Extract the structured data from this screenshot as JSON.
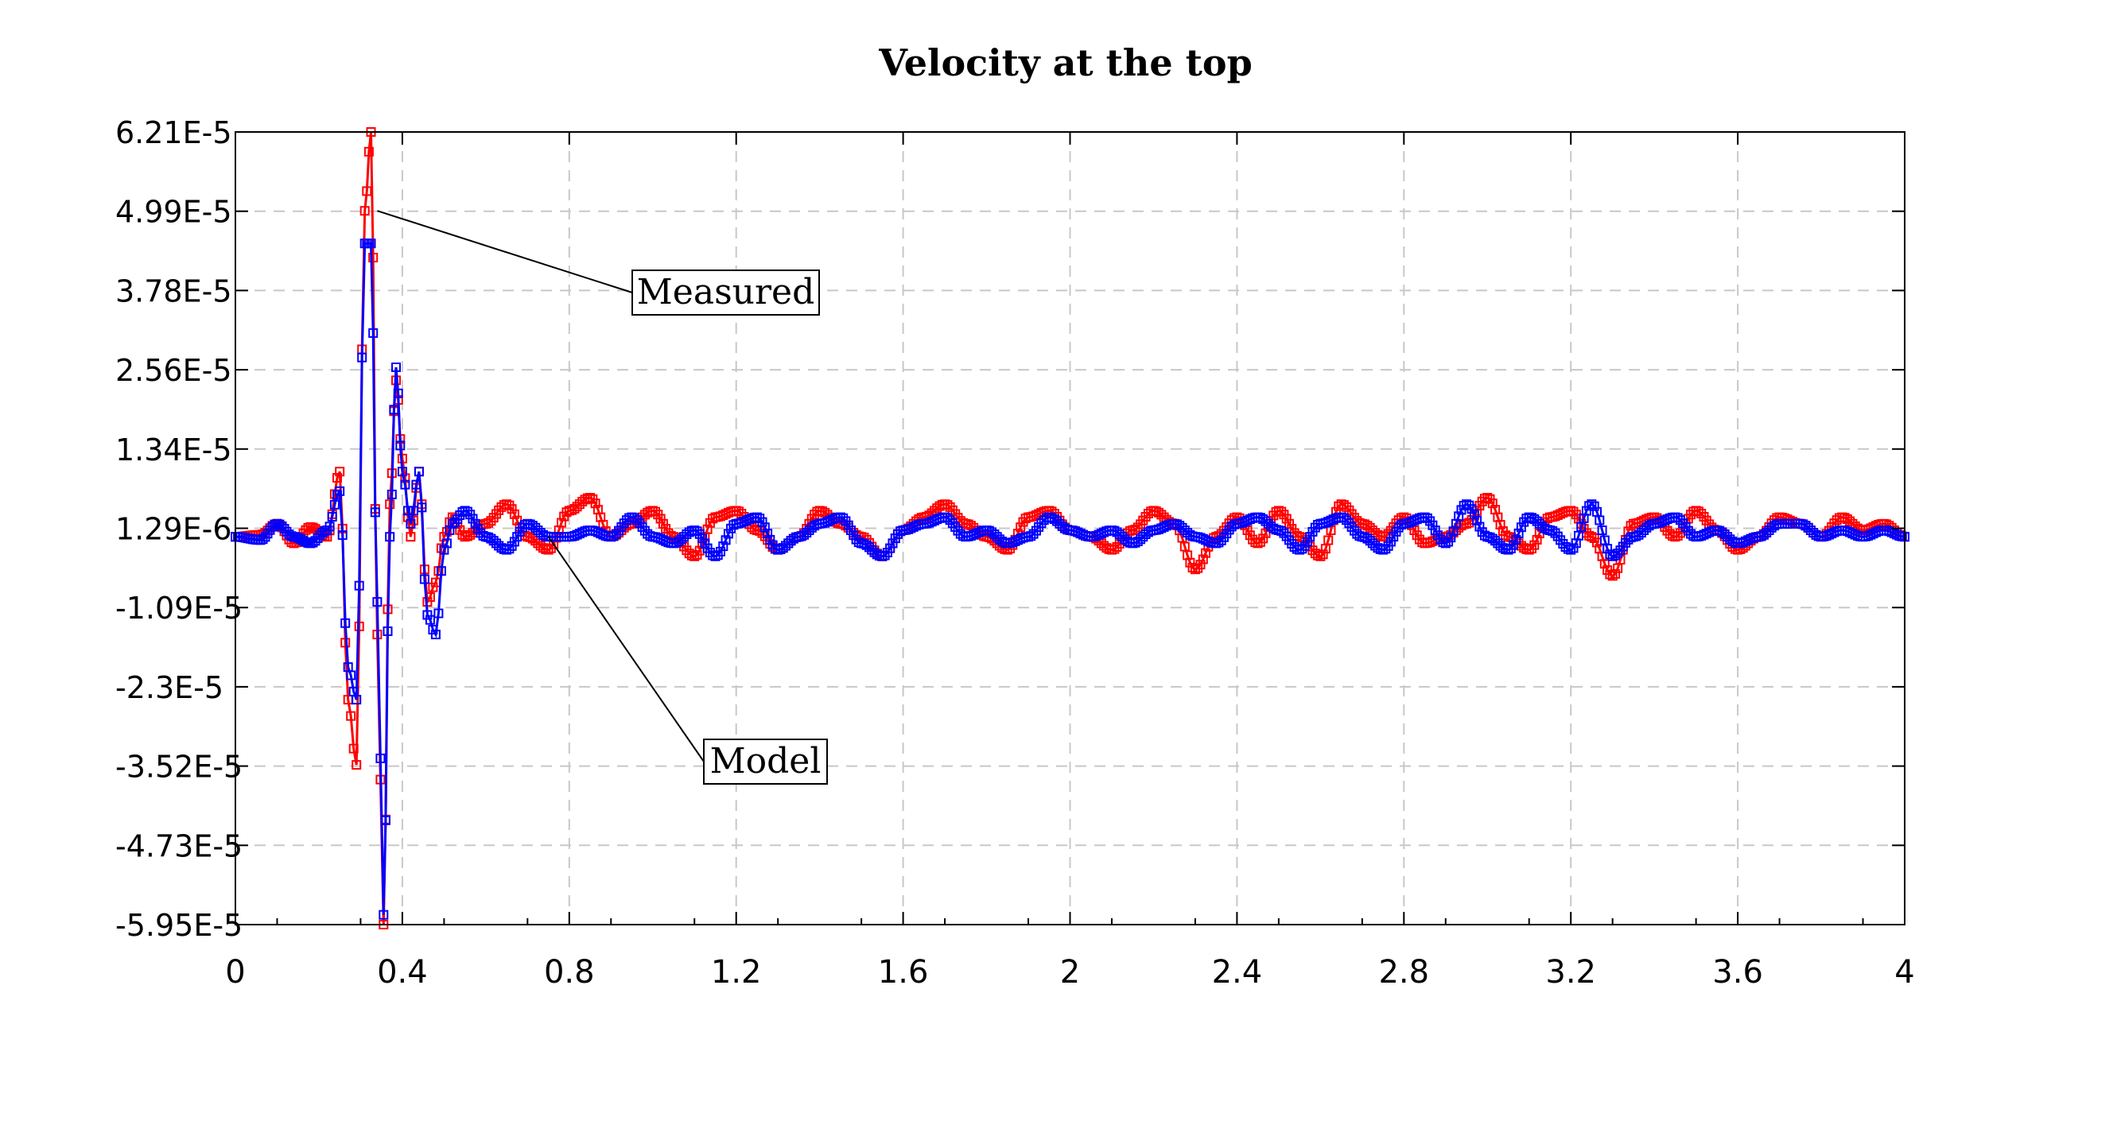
{
  "chart_data": {
    "type": "line",
    "title": "Velocity at the top",
    "xlabel": "",
    "ylabel": "",
    "xlim": [
      0,
      4
    ],
    "ylim": [
      -5.95e-05,
      6.21e-05
    ],
    "x_ticks": [
      "0",
      "0.4",
      "0.8",
      "1.2",
      "1.6",
      "2",
      "2.4",
      "2.8",
      "3.2",
      "3.6",
      "4"
    ],
    "y_ticks": [
      "6.21E-5",
      "4.99E-5",
      "3.78E-5",
      "2.56E-5",
      "1.34E-5",
      "1.29E-6",
      "-1.09E-5",
      "-2.3E-5",
      "-3.52E-5",
      "-4.73E-5",
      "-5.95E-5"
    ],
    "grid": true,
    "legend": "none",
    "series": [
      {
        "name": "Measured",
        "color": "#ff0000",
        "marker": "square",
        "x": [
          0,
          0.06,
          0.1,
          0.14,
          0.18,
          0.22,
          0.25,
          0.27,
          0.29,
          0.31,
          0.325,
          0.34,
          0.355,
          0.37,
          0.385,
          0.4,
          0.42,
          0.44,
          0.46,
          0.48,
          0.5,
          0.52,
          0.55,
          0.6,
          0.65,
          0.7,
          0.75,
          0.8,
          0.85,
          0.9,
          0.95,
          1.0,
          1.05,
          1.1,
          1.15,
          1.2,
          1.25,
          1.3,
          1.35,
          1.4,
          1.45,
          1.5,
          1.55,
          1.6,
          1.65,
          1.7,
          1.75,
          1.8,
          1.85,
          1.9,
          1.95,
          2.0,
          2.05,
          2.1,
          2.15,
          2.2,
          2.25,
          2.3,
          2.35,
          2.4,
          2.45,
          2.5,
          2.55,
          2.6,
          2.65,
          2.7,
          2.75,
          2.8,
          2.85,
          2.9,
          2.95,
          3.0,
          3.05,
          3.1,
          3.15,
          3.2,
          3.25,
          3.3,
          3.35,
          3.4,
          3.45,
          3.5,
          3.55,
          3.6,
          3.65,
          3.7,
          3.75,
          3.8,
          3.85,
          3.9,
          3.95,
          4.0
        ],
        "y": [
          0.0,
          3e-07,
          2e-06,
          -1e-06,
          1.5e-06,
          0.0,
          1e-05,
          -2.5e-05,
          -3.5e-05,
          5e-05,
          6.21e-05,
          -1.5e-05,
          -5.95e-05,
          5e-06,
          2.4e-05,
          1.2e-05,
          0.0,
          1e-05,
          -1e-05,
          -7e-06,
          0.0,
          3e-06,
          0.0,
          2e-06,
          5e-06,
          0.0,
          -2e-06,
          4e-06,
          6e-06,
          0.0,
          2e-06,
          4e-06,
          0.0,
          -3e-06,
          3e-06,
          4e-06,
          1e-06,
          -2e-06,
          0.0,
          4e-06,
          2e-06,
          0.0,
          -3e-06,
          1e-06,
          3e-06,
          5e-06,
          2e-06,
          0.0,
          -2e-06,
          3e-06,
          4e-06,
          1e-06,
          0.0,
          -2e-06,
          1e-06,
          4e-06,
          2e-06,
          -5e-06,
          0.0,
          3e-06,
          -1e-06,
          4e-06,
          0.0,
          -3e-06,
          5e-06,
          2e-06,
          0.0,
          3e-06,
          -1e-06,
          0.0,
          2e-06,
          6e-06,
          0.0,
          -2e-06,
          3e-06,
          4e-06,
          0.0,
          -6e-06,
          2e-06,
          3e-06,
          0.0,
          4e-06,
          1e-06,
          -2e-06,
          0.0,
          3e-06,
          2e-06,
          0.0,
          3e-06,
          1e-06,
          2e-06,
          0.0
        ]
      },
      {
        "name": "Model",
        "color": "#0000ff",
        "marker": "square",
        "x": [
          0,
          0.06,
          0.1,
          0.14,
          0.18,
          0.22,
          0.25,
          0.27,
          0.29,
          0.31,
          0.325,
          0.34,
          0.355,
          0.37,
          0.385,
          0.4,
          0.42,
          0.44,
          0.46,
          0.48,
          0.5,
          0.52,
          0.55,
          0.6,
          0.65,
          0.7,
          0.75,
          0.8,
          0.85,
          0.9,
          0.95,
          1.0,
          1.05,
          1.1,
          1.15,
          1.2,
          1.25,
          1.3,
          1.35,
          1.4,
          1.45,
          1.5,
          1.55,
          1.6,
          1.65,
          1.7,
          1.75,
          1.8,
          1.85,
          1.9,
          1.95,
          2.0,
          2.05,
          2.1,
          2.15,
          2.2,
          2.25,
          2.3,
          2.35,
          2.4,
          2.45,
          2.5,
          2.55,
          2.6,
          2.65,
          2.7,
          2.75,
          2.8,
          2.85,
          2.9,
          2.95,
          3.0,
          3.05,
          3.1,
          3.15,
          3.2,
          3.25,
          3.3,
          3.35,
          3.4,
          3.45,
          3.5,
          3.55,
          3.6,
          3.65,
          3.7,
          3.75,
          3.8,
          3.85,
          3.9,
          3.95,
          4.0
        ],
        "y": [
          0.0,
          -5e-07,
          2e-06,
          0.0,
          -1e-06,
          1e-06,
          7e-06,
          -2e-05,
          -2.5e-05,
          4.5e-05,
          4.5e-05,
          -1e-05,
          -5.8e-05,
          0.0,
          2.6e-05,
          1e-05,
          2e-06,
          1e-05,
          -1.2e-05,
          -1.5e-05,
          -2e-06,
          2e-06,
          4e-06,
          0.0,
          -2e-06,
          2e-06,
          0.0,
          0.0,
          1e-06,
          0.0,
          3e-06,
          0.0,
          -1e-06,
          1e-06,
          -3e-06,
          2e-06,
          3e-06,
          -2e-06,
          0.0,
          2e-06,
          3e-06,
          -1e-06,
          -3e-06,
          1e-06,
          2e-06,
          3e-06,
          0.0,
          1e-06,
          -1e-06,
          0.0,
          3e-06,
          1e-06,
          0.0,
          1e-06,
          -1e-06,
          1e-06,
          2e-06,
          0.0,
          -1e-06,
          2e-06,
          3e-06,
          1e-06,
          -2e-06,
          2e-06,
          3e-06,
          0.0,
          -2e-06,
          2e-06,
          3e-06,
          -1e-06,
          5e-06,
          0.0,
          -2e-06,
          3e-06,
          1e-06,
          -2e-06,
          5e-06,
          -3e-06,
          0.0,
          2e-06,
          3e-06,
          0.0,
          1e-06,
          -1e-06,
          0.0,
          2e-06,
          2e-06,
          0.0,
          1e-06,
          0.0,
          1e-06,
          0.0
        ]
      }
    ],
    "annotations": [
      {
        "text": "Measured",
        "series": "Measured",
        "x": 0.34,
        "y": 5e-05
      },
      {
        "text": "Model",
        "series": "Model",
        "x": 0.75,
        "y": 0.0
      }
    ]
  }
}
